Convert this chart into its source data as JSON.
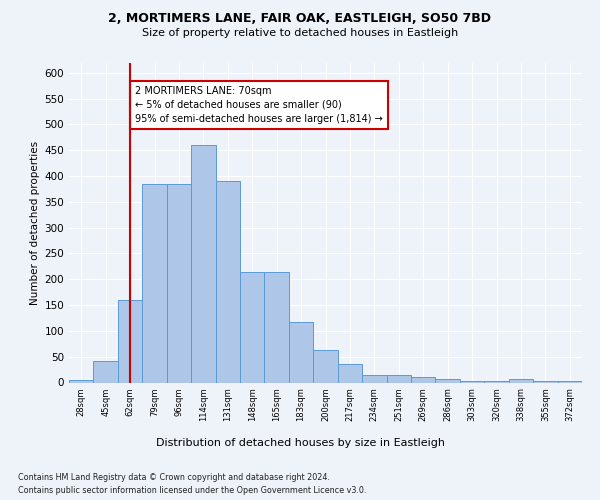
{
  "title_line1": "2, MORTIMERS LANE, FAIR OAK, EASTLEIGH, SO50 7BD",
  "title_line2": "Size of property relative to detached houses in Eastleigh",
  "xlabel": "Distribution of detached houses by size in Eastleigh",
  "ylabel": "Number of detached properties",
  "categories": [
    "28sqm",
    "45sqm",
    "62sqm",
    "79sqm",
    "96sqm",
    "114sqm",
    "131sqm",
    "148sqm",
    "165sqm",
    "183sqm",
    "200sqm",
    "217sqm",
    "234sqm",
    "251sqm",
    "269sqm",
    "286sqm",
    "303sqm",
    "320sqm",
    "338sqm",
    "355sqm",
    "372sqm"
  ],
  "values": [
    5,
    42,
    160,
    385,
    385,
    460,
    390,
    215,
    215,
    118,
    63,
    35,
    15,
    15,
    10,
    6,
    2,
    2,
    6,
    2,
    2
  ],
  "bar_color": "#aec6e8",
  "bar_edge_color": "#5b9bd5",
  "vline_x": 2,
  "vline_color": "#cc0000",
  "annotation_text": "2 MORTIMERS LANE: 70sqm\n← 5% of detached houses are smaller (90)\n95% of semi-detached houses are larger (1,814) →",
  "annotation_box_color": "#ffffff",
  "annotation_box_edge_color": "#cc0000",
  "ylim": [
    0,
    620
  ],
  "yticks": [
    0,
    50,
    100,
    150,
    200,
    250,
    300,
    350,
    400,
    450,
    500,
    550,
    600
  ],
  "footer_line1": "Contains HM Land Registry data © Crown copyright and database right 2024.",
  "footer_line2": "Contains public sector information licensed under the Open Government Licence v3.0.",
  "background_color": "#eef2f9",
  "grid_color": "#ffffff"
}
